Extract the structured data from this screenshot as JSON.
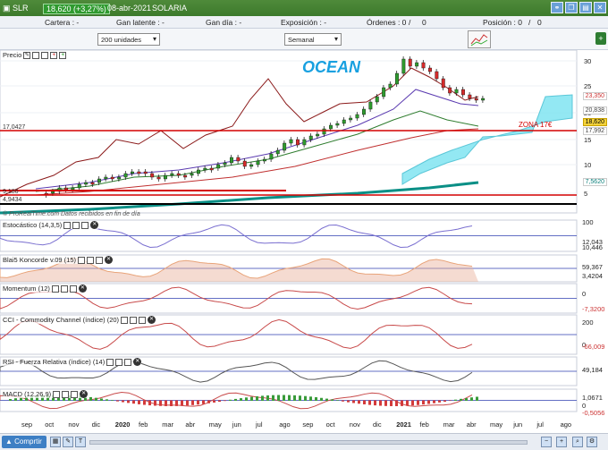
{
  "titlebar": {
    "symbol": "SLR",
    "change": "18,620 (+3,27%)",
    "date": "08-abr-2021",
    "name": "SOLARIA"
  },
  "infobar": {
    "cartera": "Cartera : -",
    "ganancia_latente": "Gan latente : -",
    "ganancia_dia": "Gan día : -",
    "exposicion": "Exposición : -",
    "ordenes": "Órdenes : 0",
    "ordenes_count": "0",
    "posicion": "Posición : 0",
    "posicion_count": "0"
  },
  "controls": {
    "units": "200 unidades",
    "period": "Semanal"
  },
  "price_panel": {
    "label": "Precio",
    "annotation": "OCEAN",
    "zona": "ZONA 17€",
    "level_left": "17,0427",
    "level_left2": "9,186",
    "level_left3": "4,9434",
    "y_ticks": [
      "30",
      "25",
      "20",
      "15",
      "10",
      "5"
    ],
    "boxes": [
      {
        "text": "23,350",
        "color": "#cc3333"
      },
      {
        "text": "20,838",
        "color": "#444"
      },
      {
        "text": "18,620",
        "color": "#000"
      },
      {
        "text": "17,992",
        "color": "#444"
      },
      {
        "text": "7,5620",
        "color": "#0a7f7a"
      }
    ],
    "watermark": "© ProRealTime.com  Datos recibidos en fin de día"
  },
  "indicators": [
    {
      "id": "estocastico",
      "label": "Estocástico (14,3,5)",
      "values": [
        "100",
        "12,043",
        "10,446"
      ]
    },
    {
      "id": "blai5",
      "label": "Blai5 Koncorde v.09 (15)",
      "values": [
        "59,367",
        "3,4204"
      ]
    },
    {
      "id": "momentum",
      "label": "Momentum (12)",
      "values": [
        "0",
        "-7,3200"
      ]
    },
    {
      "id": "cci",
      "label": "CCI - Commodity Channel (índice) (20)",
      "values": [
        "200",
        "0",
        "-66,009"
      ]
    },
    {
      "id": "rsi",
      "label": "RSI - Fuerza Relativa (índice) (14)",
      "values": [
        "49,184"
      ]
    },
    {
      "id": "macd",
      "label": "MACD (12,26,9)",
      "values": [
        "1,0671",
        "0",
        "-0,5056"
      ]
    }
  ],
  "x_axis": [
    "sep",
    "oct",
    "nov",
    "dic",
    "2020",
    "feb",
    "mar",
    "abr",
    "may",
    "jun",
    "jul",
    "ago",
    "sep",
    "oct",
    "nov",
    "dic",
    "2021",
    "feb",
    "mar",
    "abr",
    "may",
    "jun",
    "jul",
    "ago"
  ],
  "bottombar": {
    "trade_label": "Comprtir"
  },
  "colors": {
    "titlebar": "#3c7a2c",
    "zona_line": "#d40000",
    "ichimoku_fill": "#7fe3f0",
    "sma_teal": "#0a8f86"
  }
}
